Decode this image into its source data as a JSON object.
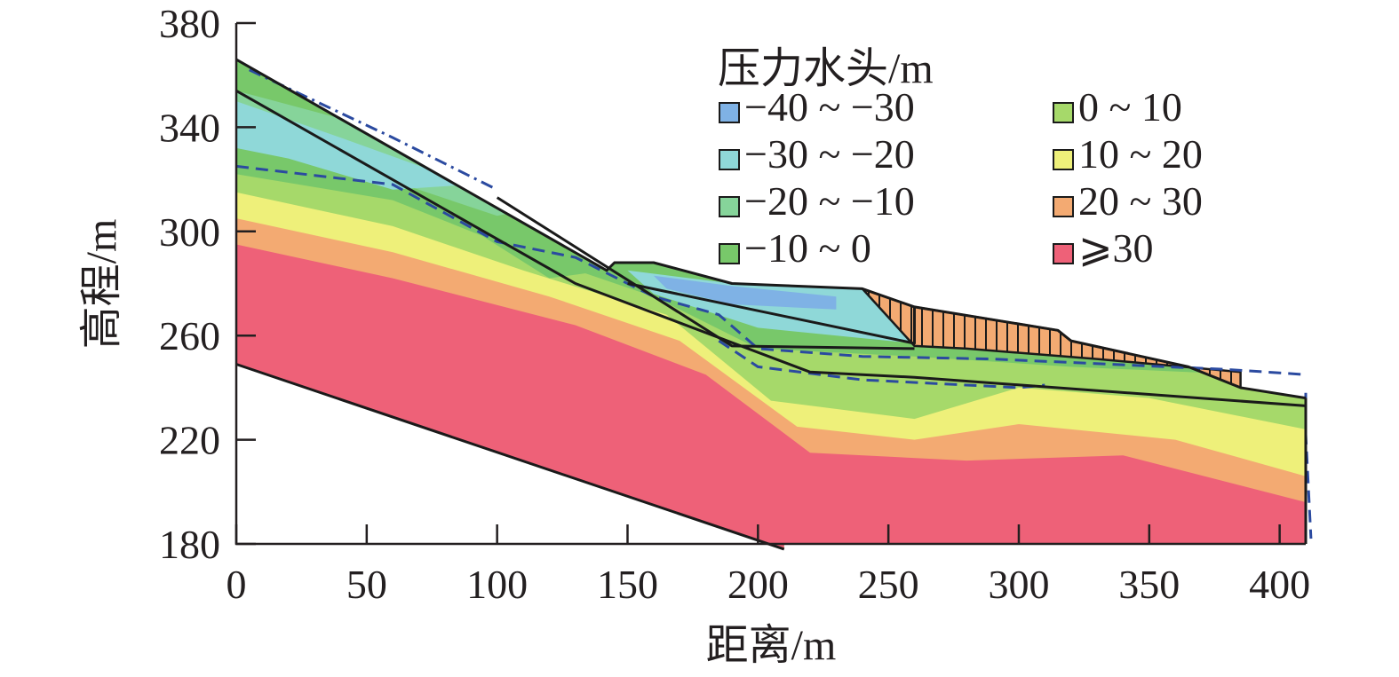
{
  "chart_data": {
    "type": "contour",
    "xlabel": "距离/m",
    "ylabel": "高程/m",
    "xlim": [
      0,
      410
    ],
    "ylim": [
      180,
      380
    ],
    "x_ticks": [
      0,
      50,
      100,
      150,
      200,
      250,
      300,
      350,
      400
    ],
    "y_ticks": [
      180,
      220,
      260,
      300,
      340,
      380
    ],
    "legend": {
      "title": "压力水头/m",
      "placement": "top-right",
      "entries": [
        {
          "label": "−40 ~ −30",
          "color": "#7fb2e5"
        },
        {
          "label": "−30 ~ −20",
          "color": "#8fd8d8"
        },
        {
          "label": "−20 ~ −10",
          "color": "#86d49a"
        },
        {
          "label": "−10 ~ 0",
          "color": "#78c86a"
        },
        {
          "label": "0 ~ 10",
          "color": "#a6d96a"
        },
        {
          "label": "10 ~ 20",
          "color": "#eef07a"
        },
        {
          "label": "20 ~ 30",
          "color": "#f3aa72"
        },
        {
          "label": "⩾30",
          "color": "#ee6178"
        }
      ]
    },
    "slope_surface": [
      [
        0,
        366
      ],
      [
        142,
        285
      ],
      [
        145,
        288
      ],
      [
        160,
        288
      ],
      [
        190,
        280
      ],
      [
        240,
        278
      ],
      [
        260,
        271
      ],
      [
        315,
        262
      ],
      [
        320,
        258
      ],
      [
        365,
        248
      ],
      [
        385,
        240
      ],
      [
        410,
        236
      ]
    ],
    "bedrock_line": [
      [
        0,
        249
      ],
      [
        210,
        178
      ]
    ],
    "right_boundary_x": 410,
    "sliding_surfaces": [
      [
        [
          0,
          354
        ],
        [
          130,
          280
        ],
        [
          220,
          246
        ],
        [
          260,
          244
        ],
        [
          410,
          233
        ]
      ],
      [
        [
          100,
          313
        ],
        [
          190,
          256
        ],
        [
          260,
          255
        ]
      ],
      [
        [
          150,
          280
        ],
        [
          260,
          257
        ],
        [
          260,
          271
        ]
      ]
    ],
    "hatched_zone": [
      [
        240,
        278
      ],
      [
        260,
        271
      ],
      [
        315,
        262
      ],
      [
        320,
        258
      ],
      [
        365,
        248
      ],
      [
        385,
        240
      ],
      [
        385,
        246
      ],
      [
        330,
        251
      ],
      [
        280,
        255
      ],
      [
        260,
        256
      ]
    ],
    "phreatic_lines": [
      [
        [
          0,
          325
        ],
        [
          60,
          318
        ],
        [
          100,
          296
        ],
        [
          130,
          290
        ],
        [
          160,
          275
        ],
        [
          185,
          268
        ],
        [
          200,
          255
        ],
        [
          240,
          252
        ],
        [
          290,
          251
        ],
        [
          380,
          247
        ],
        [
          410,
          245
        ]
      ],
      [
        [
          185,
          258
        ],
        [
          200,
          248
        ],
        [
          240,
          243
        ],
        [
          300,
          240
        ],
        [
          310,
          241
        ]
      ],
      [
        [
          410,
          238
        ],
        [
          410,
          222
        ],
        [
          412,
          182
        ]
      ]
    ],
    "contour_bands": [
      {
        "upper": [
          [
            0,
            330
          ],
          [
            60,
            322
          ],
          [
            100,
            300
          ],
          [
            150,
            286
          ],
          [
            190,
            260
          ],
          [
            250,
            256
          ],
          [
            320,
            252
          ],
          [
            410,
            248
          ]
        ],
        "color": "#78c86a"
      },
      {
        "upper": [
          [
            0,
            322
          ],
          [
            60,
            312
          ],
          [
            110,
            292
          ],
          [
            160,
            275
          ],
          [
            200,
            255
          ],
          [
            260,
            252
          ],
          [
            320,
            248
          ],
          [
            410,
            244
          ]
        ],
        "color": "#a6d96a"
      },
      {
        "upper": [
          [
            0,
            315
          ],
          [
            60,
            302
          ],
          [
            110,
            285
          ],
          [
            165,
            268
          ],
          [
            205,
            235
          ],
          [
            260,
            228
          ],
          [
            300,
            240
          ],
          [
            350,
            236
          ],
          [
            410,
            224
          ]
        ],
        "color": "#eef07a"
      },
      {
        "upper": [
          [
            0,
            305
          ],
          [
            60,
            292
          ],
          [
            120,
            275
          ],
          [
            170,
            258
          ],
          [
            215,
            225
          ],
          [
            260,
            220
          ],
          [
            300,
            226
          ],
          [
            360,
            220
          ],
          [
            410,
            206
          ]
        ],
        "color": "#f3aa72"
      },
      {
        "upper": [
          [
            0,
            295
          ],
          [
            60,
            282
          ],
          [
            130,
            264
          ],
          [
            180,
            245
          ],
          [
            220,
            215
          ],
          [
            280,
            212
          ],
          [
            340,
            214
          ],
          [
            410,
            196
          ]
        ],
        "color": "#ee6178"
      }
    ],
    "upper_zone_bands": [
      {
        "poly": [
          [
            0,
            366
          ],
          [
            60,
            332
          ],
          [
            142,
            285
          ],
          [
            120,
            282
          ],
          [
            60,
            320
          ],
          [
            0,
            348
          ]
        ],
        "color": "#78c86a"
      },
      {
        "poly": [
          [
            0,
            354
          ],
          [
            60,
            338
          ],
          [
            120,
            310
          ],
          [
            100,
            306
          ],
          [
            40,
            326
          ],
          [
            0,
            334
          ]
        ],
        "color": "#86d49a"
      },
      {
        "poly": [
          [
            0,
            350
          ],
          [
            40,
            336
          ],
          [
            90,
            318
          ],
          [
            60,
            316
          ],
          [
            20,
            328
          ],
          [
            0,
            332
          ]
        ],
        "color": "#8fd8d8"
      },
      {
        "poly": [
          [
            150,
            285
          ],
          [
            190,
            280
          ],
          [
            240,
            278
          ],
          [
            260,
            271
          ],
          [
            260,
            257
          ],
          [
            200,
            263
          ],
          [
            160,
            276
          ]
        ],
        "color": "#8fd8d8"
      },
      {
        "poly": [
          [
            160,
            283
          ],
          [
            190,
            279
          ],
          [
            230,
            275
          ],
          [
            230,
            270
          ],
          [
            190,
            272
          ],
          [
            165,
            278
          ]
        ],
        "color": "#7fb2e5"
      }
    ]
  }
}
